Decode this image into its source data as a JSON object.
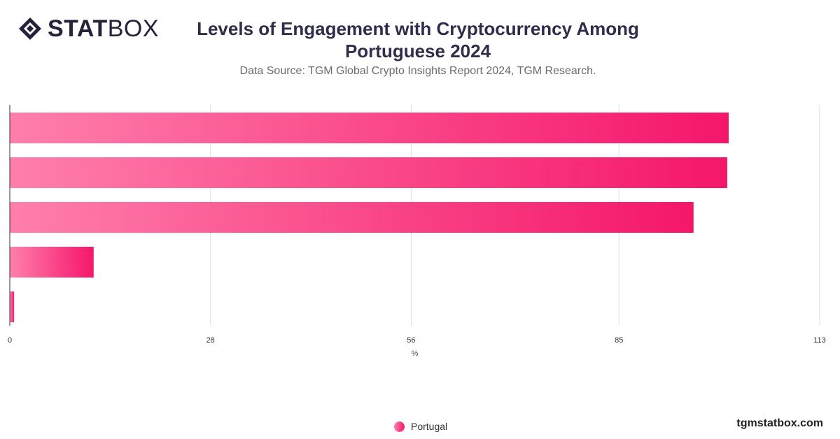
{
  "brand": {
    "logo_bold": "STAT",
    "logo_light": "BOX"
  },
  "header": {
    "title": "Levels of Engagement with Cryptocurrency Among Portuguese 2024",
    "subtitle": "Data Source: TGM Global Crypto Insights Report 2024, TGM Research."
  },
  "chart_data": {
    "type": "bar",
    "orientation": "horizontal",
    "xlabel": "%",
    "xlim": [
      0,
      113
    ],
    "ticks": [
      0,
      28,
      56,
      85,
      113
    ],
    "grid": true,
    "legend_position": "bottom-center",
    "series": [
      {
        "name": "Portugal",
        "values": [
          100.3,
          100.1,
          95.4,
          11.7,
          0.6
        ]
      }
    ],
    "colors": {
      "bar_start": "#ff7fac",
      "bar_end": "#f5166a",
      "grid": "#dddddd",
      "axis": "#333333"
    }
  },
  "footer": {
    "site": "tgmstatbox.com"
  }
}
